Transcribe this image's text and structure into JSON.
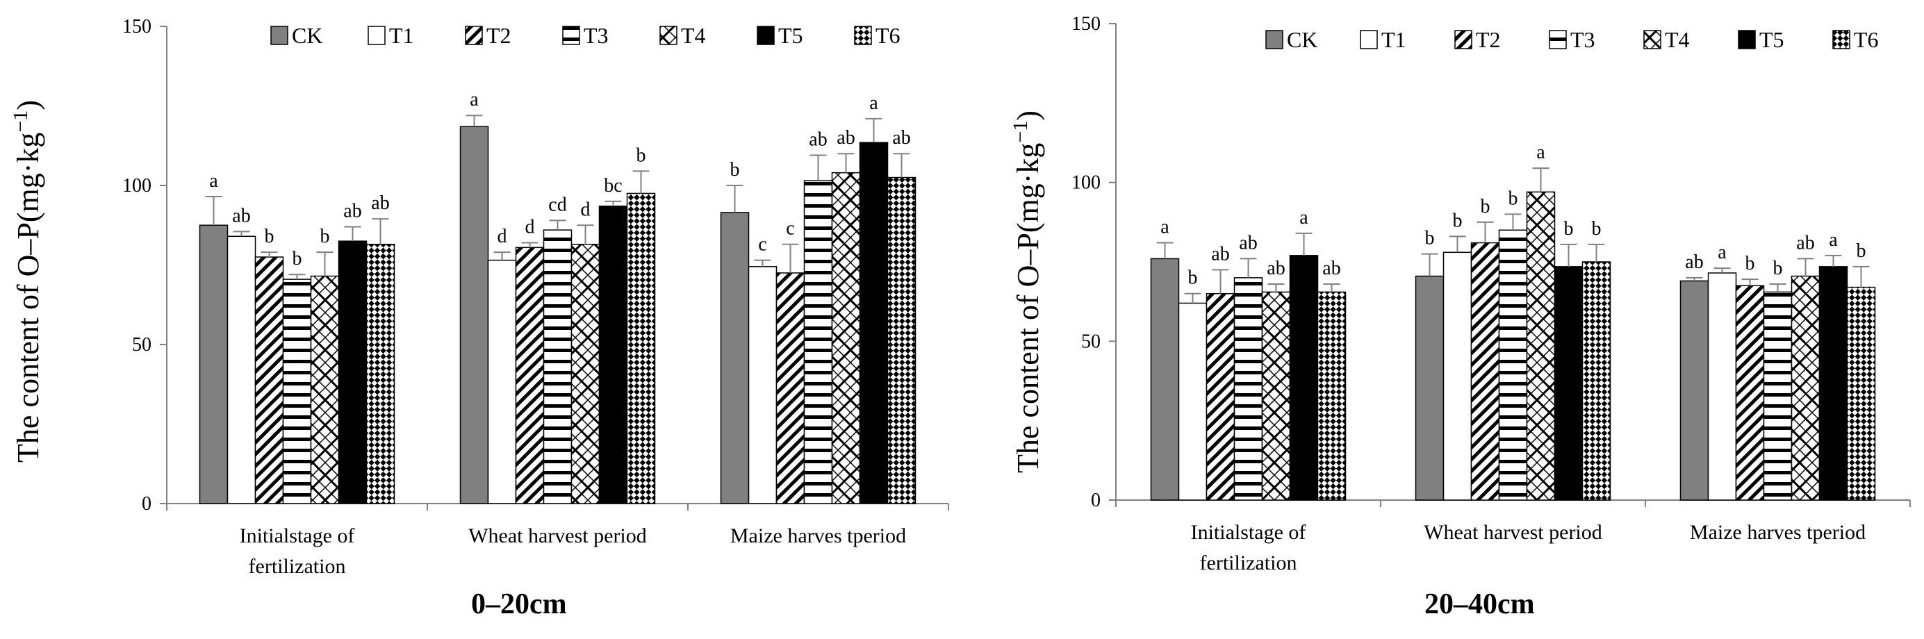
{
  "colors": {
    "CK": "#808080",
    "T5": "#000000",
    "axis": "#808080",
    "ink": "#000000"
  },
  "legend": [
    "CK",
    "T1",
    "T2",
    "T3",
    "T4",
    "T5",
    "T6"
  ],
  "chart_data": [
    {
      "type": "bar",
      "panel_label": "0–20cm",
      "ylabel": "The content of O–P(mg·kg",
      "ylabel_sup": "−1",
      "ylabel_close": ")",
      "ylim": [
        0,
        150
      ],
      "yticks": [
        0,
        50,
        100,
        150
      ],
      "categories": [
        {
          "line1": "Initialstage of",
          "line2": "fertilization"
        },
        {
          "line1": "Wheat harvest period",
          "line2": ""
        },
        {
          "line1": "Maize harves tperiod",
          "line2": ""
        }
      ],
      "series": [
        {
          "name": "CK",
          "values": [
            87.5,
            118.5,
            91.5
          ],
          "errors": [
            9,
            3.5,
            8.5
          ],
          "letters": [
            "a",
            "a",
            "b"
          ]
        },
        {
          "name": "T1",
          "values": [
            84,
            76.5,
            74.5
          ],
          "errors": [
            1.5,
            2.5,
            2
          ],
          "letters": [
            "ab",
            "d",
            "c"
          ]
        },
        {
          "name": "T2",
          "values": [
            77.5,
            80.5,
            72.5
          ],
          "errors": [
            1.5,
            1.5,
            9
          ],
          "letters": [
            "b",
            "d",
            "c"
          ]
        },
        {
          "name": "T3",
          "values": [
            70.5,
            86,
            101.5
          ],
          "errors": [
            1.5,
            3,
            8
          ],
          "letters": [
            "b",
            "cd",
            "ab"
          ]
        },
        {
          "name": "T4",
          "values": [
            71.5,
            81.5,
            104
          ],
          "errors": [
            7.5,
            6,
            6
          ],
          "letters": [
            "b",
            "d",
            "ab"
          ]
        },
        {
          "name": "T5",
          "values": [
            82.5,
            93.5,
            113.5
          ],
          "errors": [
            4.5,
            1.5,
            7.5
          ],
          "letters": [
            "ab",
            "bc",
            "a"
          ]
        },
        {
          "name": "T6",
          "values": [
            81.5,
            97.5,
            102.5
          ],
          "errors": [
            8,
            7,
            7.5
          ],
          "letters": [
            "ab",
            "b",
            "ab"
          ]
        }
      ]
    },
    {
      "type": "bar",
      "panel_label": "20–40cm",
      "ylabel": "The content of O–P(mg·kg",
      "ylabel_sup": "−1",
      "ylabel_close": ")",
      "ylim": [
        0,
        150
      ],
      "yticks": [
        0,
        50,
        100,
        150
      ],
      "categories": [
        {
          "line1": "Initialstage of",
          "line2": "fertilization"
        },
        {
          "line1": "Wheat harvest period",
          "line2": ""
        },
        {
          "line1": "Maize harves tperiod",
          "line2": ""
        }
      ],
      "series": [
        {
          "name": "CK",
          "values": [
            76,
            70.5,
            69
          ],
          "errors": [
            5,
            7,
            1
          ],
          "letters": [
            "a",
            "b",
            "ab"
          ]
        },
        {
          "name": "T1",
          "values": [
            62,
            78,
            71.5
          ],
          "errors": [
            3,
            5,
            1.5
          ],
          "letters": [
            "b",
            "b",
            "a"
          ]
        },
        {
          "name": "T2",
          "values": [
            65,
            81,
            67.5
          ],
          "errors": [
            7.5,
            6.5,
            2
          ],
          "letters": [
            "ab",
            "b",
            "b"
          ]
        },
        {
          "name": "T3",
          "values": [
            70,
            85,
            65.5
          ],
          "errors": [
            6,
            5,
            2.5
          ],
          "letters": [
            "ab",
            "b",
            "b"
          ]
        },
        {
          "name": "T4",
          "values": [
            65.5,
            97,
            70.5
          ],
          "errors": [
            2.5,
            7.5,
            5.5
          ],
          "letters": [
            "ab",
            "a",
            "ab"
          ]
        },
        {
          "name": "T5",
          "values": [
            77,
            73.5,
            73.5
          ],
          "errors": [
            7,
            7,
            3.5
          ],
          "letters": [
            "a",
            "b",
            "a"
          ]
        },
        {
          "name": "T6",
          "values": [
            65.5,
            75,
            67
          ],
          "errors": [
            2.5,
            5.5,
            6.5
          ],
          "letters": [
            "ab",
            "b",
            "b"
          ]
        }
      ]
    }
  ]
}
